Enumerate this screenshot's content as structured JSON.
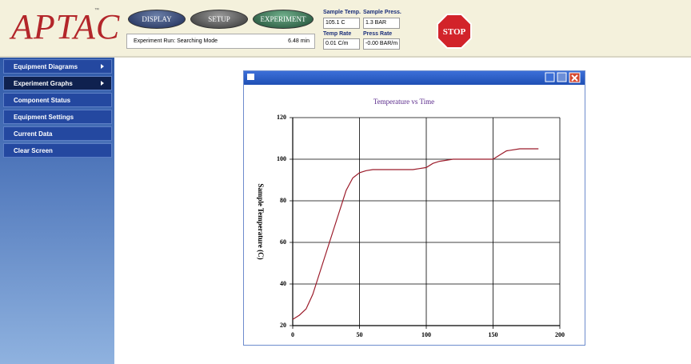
{
  "header": {
    "logo": "APTAC",
    "trademark": "™",
    "buttons": [
      "DISPLAY",
      "SETUP",
      "EXPERIMENT"
    ],
    "status": "Experiment Run: Searching Mode",
    "elapsed": "6.48 min",
    "fields": [
      {
        "label": "Sample Temp.",
        "value": "105.1 C"
      },
      {
        "label": "Sample Press.",
        "value": "1.3 BAR"
      },
      {
        "label": "Temp Rate",
        "value": "0.01 C/m"
      },
      {
        "label": "Press Rate",
        "value": "-0.00 BAR/m"
      }
    ],
    "stop": "STOP"
  },
  "menu": [
    "Equipment Diagrams",
    "Experiment Graphs",
    "Component Status",
    "Equipment Settings",
    "Current Data",
    "Clear Screen"
  ],
  "chart_data": {
    "type": "line",
    "title": "Temperature vs Time",
    "y_label": "Sample Temperature (C)",
    "x": [
      0,
      5,
      10,
      15,
      20,
      25,
      30,
      35,
      40,
      45,
      50,
      55,
      60,
      70,
      80,
      90,
      95,
      100,
      105,
      110,
      120,
      130,
      140,
      150,
      155,
      160,
      170,
      180,
      184
    ],
    "series": [
      {
        "name": "Sample Temperature",
        "color": "#9b1b2a",
        "values": [
          23,
          25,
          28,
          35,
          45,
          55,
          65,
          75,
          85,
          91,
          93.5,
          94.5,
          95,
          95,
          95,
          95,
          95.5,
          96,
          98,
          99,
          100,
          100,
          100,
          100,
          102,
          104,
          105,
          105,
          105
        ]
      }
    ],
    "xlim": [
      0,
      200
    ],
    "xticks": [
      0,
      50,
      100,
      150,
      200
    ],
    "ylim": [
      20,
      120
    ],
    "yticks": [
      20,
      40,
      60,
      80,
      100,
      120
    ],
    "grid": true
  }
}
